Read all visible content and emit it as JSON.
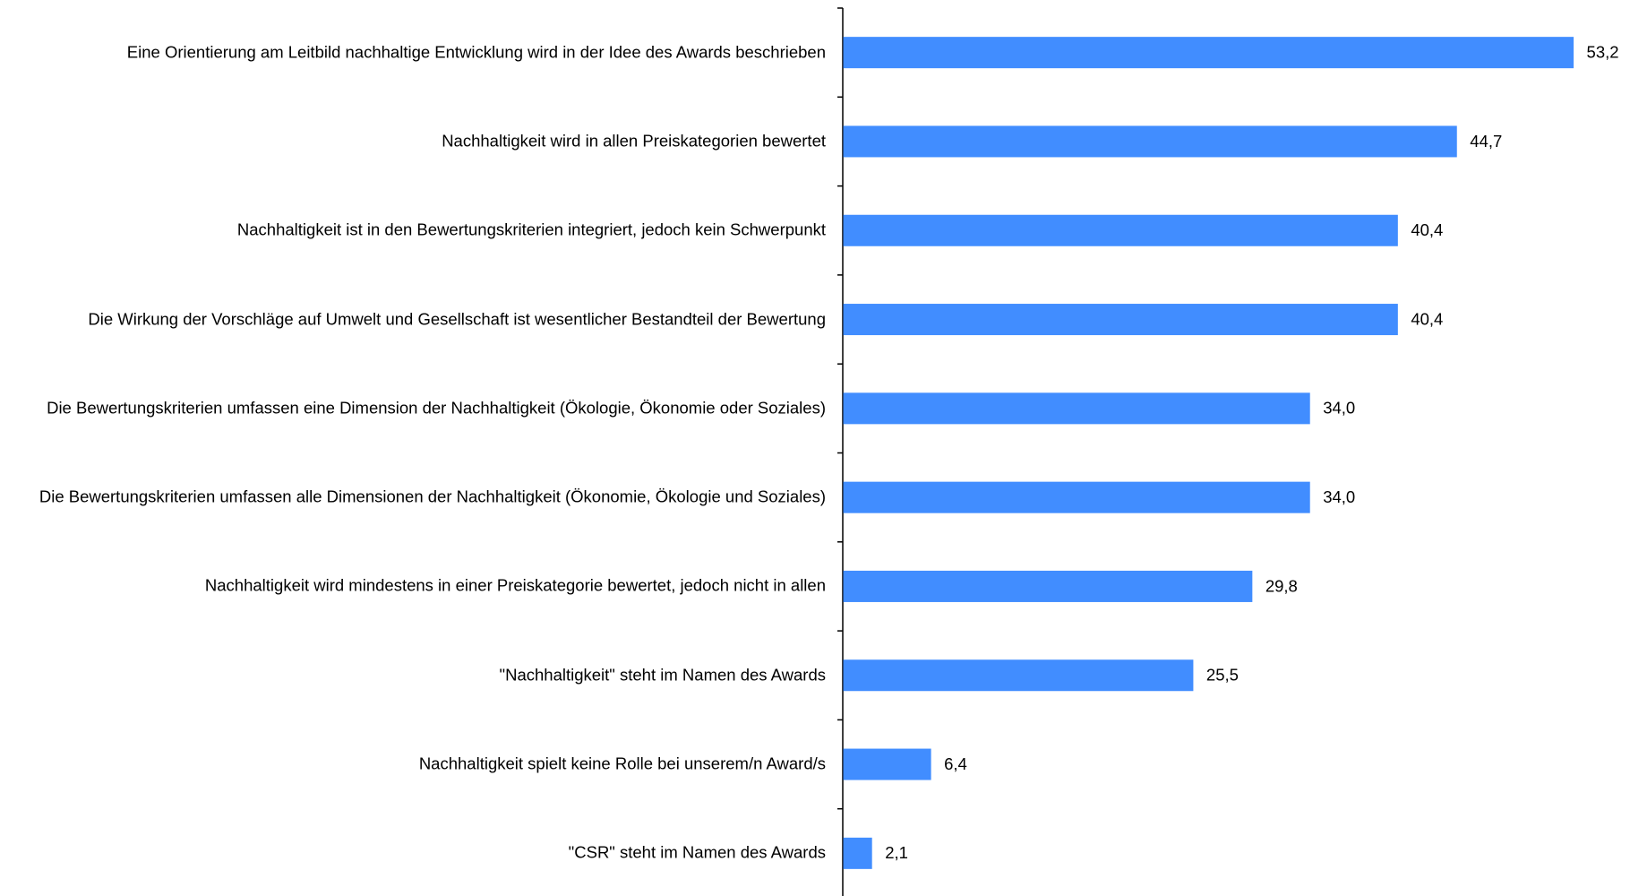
{
  "chart_data": {
    "type": "bar",
    "orientation": "horizontal",
    "color": "#418dff",
    "categories": [
      "Eine Orientierung am Leitbild nachhaltige Entwicklung wird in der Idee des Awards beschrieben",
      "Nachhaltigkeit wird in allen Preiskategorien bewertet",
      "Nachhaltigkeit ist in den Bewertungskriterien integriert, jedoch kein Schwerpunkt",
      "Die Wirkung der Vorschläge auf Umwelt und Gesellschaft ist wesentlicher Bestandteil der Bewertung",
      "Die Bewertungskriterien umfassen eine Dimension der Nachhaltigkeit (Ökologie, Ökonomie oder Soziales)",
      "Die Bewertungskriterien umfassen alle Dimensionen der Nachhaltigkeit (Ökonomie, Ökologie und Soziales)",
      "Nachhaltigkeit wird mindestens in einer Preiskategorie bewertet, jedoch nicht in allen",
      "\"Nachhaltigkeit\" steht im Namen des Awards",
      "Nachhaltigkeit spielt keine Rolle bei unserem/n Award/s",
      "\"CSR\" steht im Namen des Awards"
    ],
    "values": [
      53.2,
      44.7,
      40.4,
      40.4,
      34.0,
      34.0,
      29.8,
      25.5,
      6.4,
      2.1
    ],
    "value_labels": [
      "53,2",
      "44,7",
      "40,4",
      "40,4",
      "34,0",
      "34,0",
      "29,8",
      "25,5",
      "6,4",
      "2,1"
    ]
  }
}
